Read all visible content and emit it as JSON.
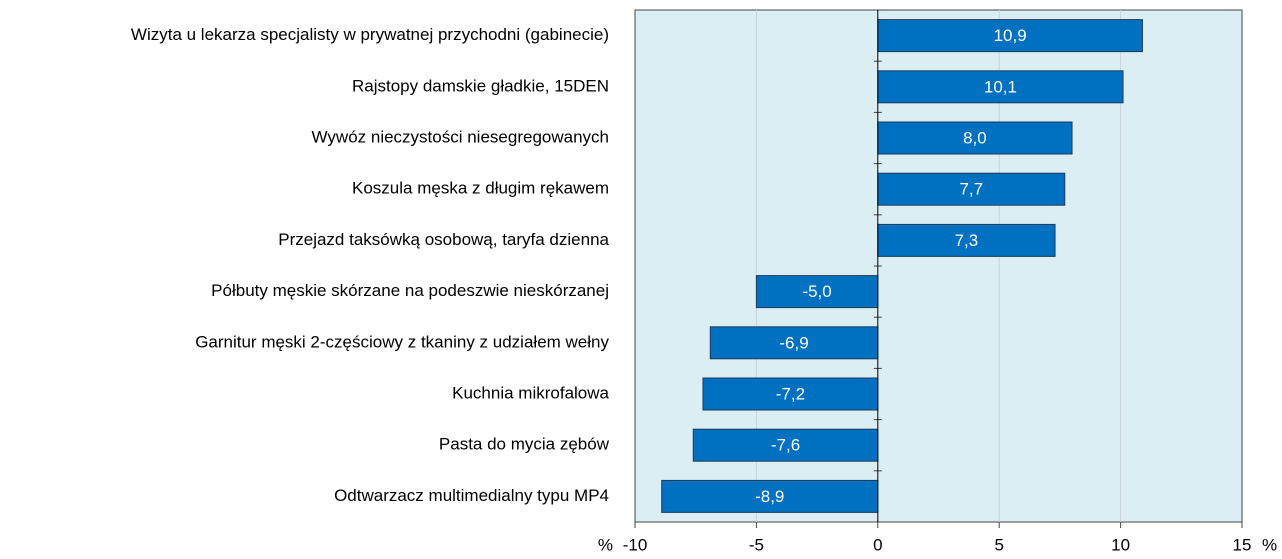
{
  "chart_data": {
    "type": "barh",
    "categories": [
      "Wizyta u lekarza specjalisty w prywatnej przychodni (gabinecie)",
      "Rajstopy damskie gładkie, 15DEN",
      "Wywóz nieczystości niesegregowanych",
      "Koszula męska z długim rękawem",
      "Przejazd taksówką osobową, taryfa dzienna",
      "Półbuty męskie skórzane na podeszwie nieskórzanej",
      "Garnitur męski 2-częściowy z tkaniny z udziałem wełny",
      "Kuchnia mikrofalowa",
      "Pasta do mycia zębów",
      "Odtwarzacz multimedialny typu MP4"
    ],
    "values": [
      10.9,
      10.1,
      8.0,
      7.7,
      7.3,
      -5.0,
      -6.9,
      -7.2,
      -7.6,
      -8.9
    ],
    "value_labels": [
      "10,9",
      "10,1",
      "8,0",
      "7,7",
      "7,3",
      "-5,0",
      "-6,9",
      "-7,2",
      "-7,6",
      "-8,9"
    ],
    "color": "#0070c0",
    "xlim": [
      -10,
      15
    ],
    "xticks": [
      -10,
      -5,
      0,
      5,
      10,
      15
    ],
    "xlabel": "%",
    "grid": true
  }
}
